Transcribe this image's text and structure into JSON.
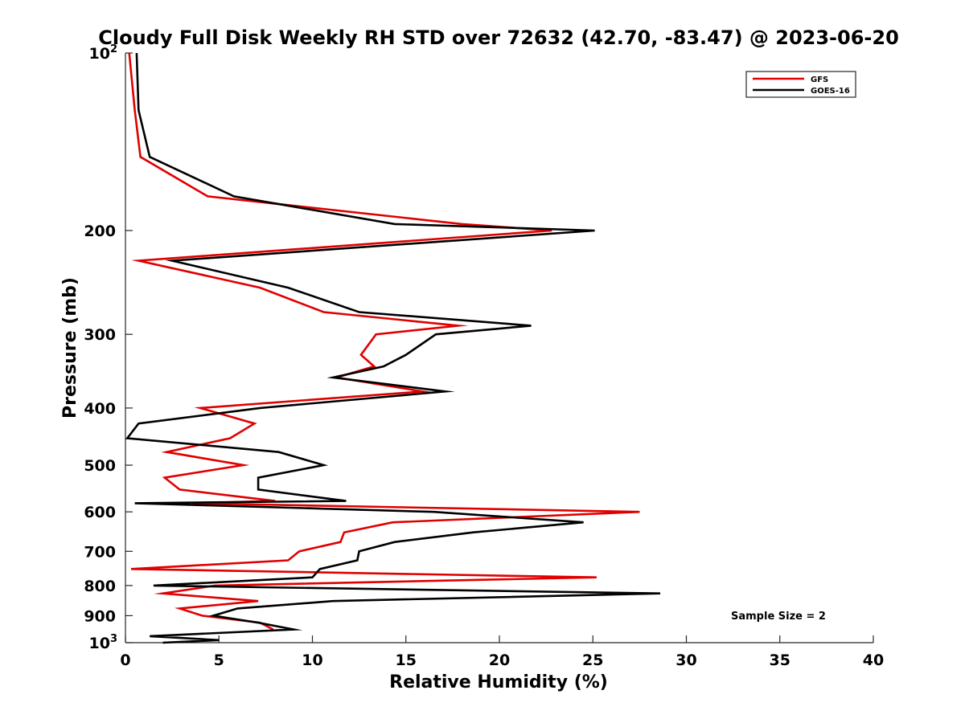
{
  "chart_data": {
    "type": "line",
    "title": "Cloudy Full Disk Weekly RH STD over 72632 (42.70, -83.47) @ 2023-06-20",
    "xlabel": "Relative Humidity (%)",
    "ylabel": "Pressure (mb)",
    "xlim": [
      0,
      40
    ],
    "ylim": [
      100,
      1000
    ],
    "y_scale": "log",
    "y_reversed": true,
    "grid": false,
    "legend_position": "top-right",
    "x_ticks": [
      "0",
      "5",
      "10",
      "15",
      "20",
      "25",
      "30",
      "35",
      "40"
    ],
    "y_ticks": [
      {
        "value": 100,
        "base": "10",
        "exp": "2"
      },
      {
        "value": 200,
        "label": "200"
      },
      {
        "value": 300,
        "label": "300"
      },
      {
        "value": 400,
        "label": "400"
      },
      {
        "value": 500,
        "label": "500"
      },
      {
        "value": 600,
        "label": "600"
      },
      {
        "value": 700,
        "label": "700"
      },
      {
        "value": 800,
        "label": "800"
      },
      {
        "value": 900,
        "label": "900"
      },
      {
        "value": 1000,
        "base": "10",
        "exp": "3"
      }
    ],
    "annotation": "Sample Size = 2",
    "series": [
      {
        "name": "GFS",
        "color": "#e00000",
        "points": [
          [
            0.2,
            100
          ],
          [
            0.5,
            125
          ],
          [
            0.8,
            150
          ],
          [
            4.4,
            175
          ],
          [
            18.0,
            195
          ],
          [
            22.8,
            200
          ],
          [
            0.7,
            225
          ],
          [
            7.2,
            250
          ],
          [
            10.6,
            275
          ],
          [
            17.8,
            290
          ],
          [
            13.4,
            300
          ],
          [
            12.6,
            325
          ],
          [
            13.3,
            340
          ],
          [
            11.3,
            355
          ],
          [
            15.9,
            375
          ],
          [
            4.0,
            400
          ],
          [
            6.9,
            425
          ],
          [
            5.6,
            450
          ],
          [
            2.2,
            475
          ],
          [
            6.3,
            500
          ],
          [
            2.1,
            525
          ],
          [
            2.9,
            550
          ],
          [
            8.0,
            575
          ],
          [
            3.6,
            580
          ],
          [
            27.5,
            600
          ],
          [
            14.3,
            625
          ],
          [
            11.7,
            650
          ],
          [
            11.5,
            675
          ],
          [
            9.3,
            700
          ],
          [
            8.7,
            725
          ],
          [
            0.3,
            750
          ],
          [
            25.2,
            775
          ],
          [
            4.8,
            800
          ],
          [
            2.0,
            825
          ],
          [
            7.1,
            850
          ],
          [
            2.9,
            875
          ],
          [
            4.1,
            900
          ],
          [
            7.2,
            925
          ],
          [
            7.9,
            950
          ]
        ]
      },
      {
        "name": "GOES-16",
        "color": "#000000",
        "points": [
          [
            0.6,
            100
          ],
          [
            0.7,
            125
          ],
          [
            1.3,
            150
          ],
          [
            5.8,
            175
          ],
          [
            14.4,
            195
          ],
          [
            25.1,
            200
          ],
          [
            2.5,
            225
          ],
          [
            8.7,
            250
          ],
          [
            12.5,
            275
          ],
          [
            21.7,
            290
          ],
          [
            16.6,
            300
          ],
          [
            15.0,
            325
          ],
          [
            13.8,
            340
          ],
          [
            11.1,
            355
          ],
          [
            17.1,
            375
          ],
          [
            7.2,
            400
          ],
          [
            0.7,
            425
          ],
          [
            0.1,
            450
          ],
          [
            8.2,
            475
          ],
          [
            10.6,
            500
          ],
          [
            7.1,
            525
          ],
          [
            7.1,
            550
          ],
          [
            11.8,
            575
          ],
          [
            0.5,
            580
          ],
          [
            16.5,
            600
          ],
          [
            24.5,
            625
          ],
          [
            18.6,
            650
          ],
          [
            14.4,
            675
          ],
          [
            12.5,
            700
          ],
          [
            12.4,
            725
          ],
          [
            10.4,
            750
          ],
          [
            10.0,
            775
          ],
          [
            1.5,
            800
          ],
          [
            28.6,
            825
          ],
          [
            11.1,
            850
          ],
          [
            6.0,
            875
          ],
          [
            4.7,
            900
          ],
          [
            7.1,
            925
          ],
          [
            9.0,
            950
          ],
          [
            1.3,
            975
          ],
          [
            5.0,
            990
          ],
          [
            2.0,
            1000
          ]
        ]
      }
    ]
  }
}
